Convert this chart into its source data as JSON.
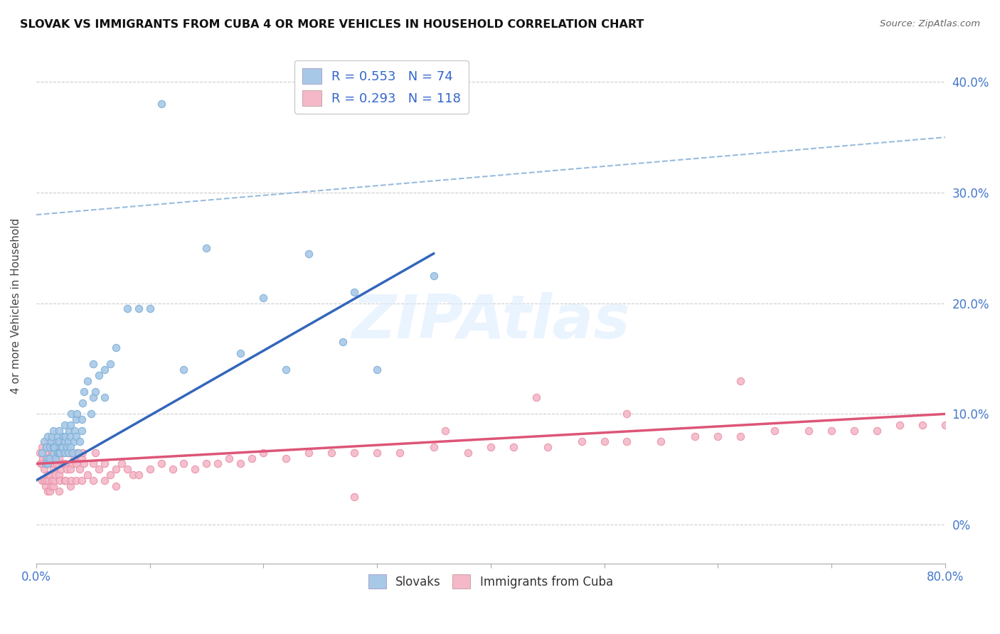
{
  "title": "SLOVAK VS IMMIGRANTS FROM CUBA 4 OR MORE VEHICLES IN HOUSEHOLD CORRELATION CHART",
  "source": "Source: ZipAtlas.com",
  "ylabel": "4 or more Vehicles in Household",
  "watermark": "ZIPAtlas",
  "slovak_color": "#a8c8e8",
  "slovak_edge_color": "#7bafd4",
  "cuba_color": "#f4b8c8",
  "cuba_edge_color": "#e890a8",
  "slovak_line_color": "#3366bb",
  "cuba_line_color": "#dd5577",
  "dashed_line_color": "#99bbdd",
  "background_color": "#ffffff",
  "grid_color": "#cccccc",
  "xlim": [
    0.0,
    0.8
  ],
  "ylim": [
    -0.035,
    0.43
  ],
  "slovak_R": 0.553,
  "slovak_N": 74,
  "cuba_R": 0.293,
  "cuba_N": 118,
  "slovak_scatter_x": [
    0.005,
    0.007,
    0.008,
    0.009,
    0.01,
    0.01,
    0.01,
    0.012,
    0.012,
    0.013,
    0.014,
    0.015,
    0.015,
    0.015,
    0.016,
    0.017,
    0.018,
    0.019,
    0.019,
    0.02,
    0.02,
    0.02,
    0.021,
    0.022,
    0.023,
    0.024,
    0.025,
    0.025,
    0.025,
    0.026,
    0.027,
    0.028,
    0.028,
    0.029,
    0.03,
    0.03,
    0.03,
    0.031,
    0.032,
    0.033,
    0.034,
    0.035,
    0.035,
    0.036,
    0.037,
    0.038,
    0.04,
    0.04,
    0.041,
    0.042,
    0.045,
    0.048,
    0.05,
    0.05,
    0.052,
    0.055,
    0.06,
    0.06,
    0.065,
    0.07,
    0.08,
    0.09,
    0.1,
    0.11,
    0.13,
    0.15,
    0.18,
    0.2,
    0.22,
    0.24,
    0.27,
    0.28,
    0.3,
    0.35
  ],
  "slovak_scatter_y": [
    0.065,
    0.075,
    0.055,
    0.07,
    0.06,
    0.055,
    0.08,
    0.06,
    0.07,
    0.075,
    0.08,
    0.065,
    0.07,
    0.085,
    0.07,
    0.06,
    0.075,
    0.065,
    0.08,
    0.065,
    0.075,
    0.085,
    0.065,
    0.07,
    0.07,
    0.08,
    0.075,
    0.09,
    0.065,
    0.08,
    0.07,
    0.065,
    0.075,
    0.085,
    0.07,
    0.08,
    0.09,
    0.1,
    0.065,
    0.075,
    0.085,
    0.08,
    0.095,
    0.1,
    0.065,
    0.075,
    0.085,
    0.095,
    0.11,
    0.12,
    0.13,
    0.1,
    0.115,
    0.145,
    0.12,
    0.135,
    0.115,
    0.14,
    0.145,
    0.16,
    0.195,
    0.195,
    0.195,
    0.38,
    0.14,
    0.25,
    0.155,
    0.205,
    0.14,
    0.245,
    0.165,
    0.21,
    0.14,
    0.225
  ],
  "cuba_scatter_x": [
    0.003,
    0.004,
    0.005,
    0.005,
    0.005,
    0.006,
    0.007,
    0.007,
    0.008,
    0.008,
    0.009,
    0.009,
    0.009,
    0.01,
    0.01,
    0.01,
    0.01,
    0.01,
    0.011,
    0.011,
    0.012,
    0.012,
    0.013,
    0.013,
    0.014,
    0.014,
    0.015,
    0.015,
    0.015,
    0.016,
    0.016,
    0.017,
    0.018,
    0.019,
    0.02,
    0.02,
    0.02,
    0.02,
    0.021,
    0.022,
    0.023,
    0.024,
    0.025,
    0.025,
    0.025,
    0.026,
    0.027,
    0.028,
    0.03,
    0.03,
    0.03,
    0.031,
    0.032,
    0.033,
    0.035,
    0.035,
    0.036,
    0.038,
    0.04,
    0.04,
    0.041,
    0.042,
    0.045,
    0.05,
    0.05,
    0.052,
    0.055,
    0.06,
    0.06,
    0.065,
    0.07,
    0.07,
    0.075,
    0.08,
    0.085,
    0.09,
    0.1,
    0.11,
    0.12,
    0.13,
    0.14,
    0.15,
    0.16,
    0.17,
    0.18,
    0.19,
    0.2,
    0.22,
    0.24,
    0.26,
    0.28,
    0.3,
    0.32,
    0.35,
    0.38,
    0.4,
    0.42,
    0.45,
    0.48,
    0.5,
    0.52,
    0.55,
    0.58,
    0.6,
    0.62,
    0.65,
    0.68,
    0.7,
    0.72,
    0.74,
    0.76,
    0.78,
    0.8,
    0.62,
    0.52,
    0.44,
    0.36,
    0.28
  ],
  "cuba_scatter_y": [
    0.065,
    0.055,
    0.04,
    0.07,
    0.055,
    0.06,
    0.04,
    0.05,
    0.035,
    0.055,
    0.04,
    0.06,
    0.07,
    0.03,
    0.045,
    0.055,
    0.065,
    0.075,
    0.04,
    0.055,
    0.03,
    0.045,
    0.035,
    0.06,
    0.04,
    0.065,
    0.035,
    0.05,
    0.065,
    0.04,
    0.055,
    0.045,
    0.055,
    0.065,
    0.03,
    0.045,
    0.06,
    0.075,
    0.04,
    0.05,
    0.055,
    0.065,
    0.04,
    0.055,
    0.07,
    0.04,
    0.05,
    0.065,
    0.035,
    0.05,
    0.065,
    0.04,
    0.055,
    0.06,
    0.04,
    0.055,
    0.065,
    0.05,
    0.04,
    0.06,
    0.065,
    0.055,
    0.045,
    0.04,
    0.055,
    0.065,
    0.05,
    0.04,
    0.055,
    0.045,
    0.035,
    0.05,
    0.055,
    0.05,
    0.045,
    0.045,
    0.05,
    0.055,
    0.05,
    0.055,
    0.05,
    0.055,
    0.055,
    0.06,
    0.055,
    0.06,
    0.065,
    0.06,
    0.065,
    0.065,
    0.065,
    0.065,
    0.065,
    0.07,
    0.065,
    0.07,
    0.07,
    0.07,
    0.075,
    0.075,
    0.075,
    0.075,
    0.08,
    0.08,
    0.08,
    0.085,
    0.085,
    0.085,
    0.085,
    0.085,
    0.09,
    0.09,
    0.09,
    0.13,
    0.1,
    0.115,
    0.085,
    0.025
  ],
  "dashed_line_x": [
    0.0,
    0.8
  ],
  "dashed_line_y": [
    0.28,
    0.35
  ],
  "slovak_line_x": [
    0.0,
    0.35
  ],
  "slovak_line_y": [
    0.04,
    0.245
  ],
  "cuba_line_x": [
    0.0,
    0.8
  ],
  "cuba_line_y": [
    0.055,
    0.1
  ]
}
